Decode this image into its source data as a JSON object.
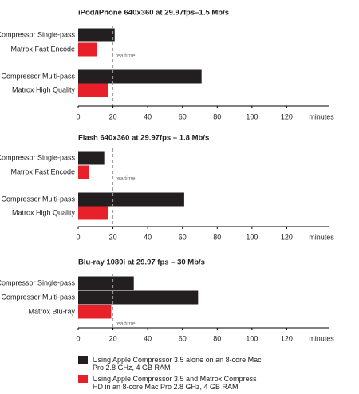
{
  "chart_data": [
    {
      "type": "bar",
      "orientation": "horizontal",
      "title": "iPod/iPhone 640x360 at 29.97fps–1.5 Mb/s",
      "categories": [
        "Compressor Single-pass",
        "Matrox Fast Encode",
        "Compressor Multi-pass",
        "Matrox High Quality"
      ],
      "series": [
        {
          "color": "#231f20",
          "values": [
            21,
            null,
            71,
            null
          ]
        },
        {
          "color": "#e8202a",
          "values": [
            null,
            11,
            null,
            17
          ]
        }
      ],
      "xlim": [
        0,
        140
      ],
      "xticks": [
        0,
        20,
        40,
        60,
        80,
        100,
        120
      ],
      "xlabel": "minutes",
      "reference_line": {
        "value": 20,
        "label": "realtime"
      }
    },
    {
      "type": "bar",
      "orientation": "horizontal",
      "title": "Flash 640x360 at 29.97fps – 1.8 Mb/s",
      "categories": [
        "Compressor Single-pass",
        "Matrox Fast Encode",
        "Compressor Multi-pass",
        "Matrox High Quality"
      ],
      "series": [
        {
          "color": "#231f20",
          "values": [
            15,
            null,
            61,
            null
          ]
        },
        {
          "color": "#e8202a",
          "values": [
            null,
            6,
            null,
            17
          ]
        }
      ],
      "xlim": [
        0,
        140
      ],
      "xticks": [
        0,
        20,
        40,
        60,
        80,
        100,
        120
      ],
      "xlabel": "minutes",
      "reference_line": {
        "value": 20,
        "label": "realtime"
      }
    },
    {
      "type": "bar",
      "orientation": "horizontal",
      "title": "Blu-ray 1080i at 29.97 fps – 30 Mb/s",
      "categories": [
        "Compressor Single-pass",
        "Compressor Multi-pass",
        "Matrox Blu-ray"
      ],
      "series": [
        {
          "color": "#231f20",
          "values": [
            32,
            69,
            null
          ]
        },
        {
          "color": "#e8202a",
          "values": [
            null,
            null,
            19
          ]
        }
      ],
      "xlim": [
        0,
        140
      ],
      "xticks": [
        0,
        20,
        40,
        60,
        80,
        100,
        120
      ],
      "xlabel": "minutes",
      "reference_line": {
        "value": 20,
        "label": "realtime"
      }
    }
  ],
  "legend": [
    {
      "name": "Using Apple Compressor 3.5 alone on an 8-core Mac Pro 2.8 GHz, 4 GB RAM",
      "color": "#231f20"
    },
    {
      "name": "Using Apple Compressor 3.5 and Matrox Compress HD in an 8-core Mac Pro 2.8 GHz, 4 GB RAM",
      "color": "#e8202a"
    }
  ]
}
